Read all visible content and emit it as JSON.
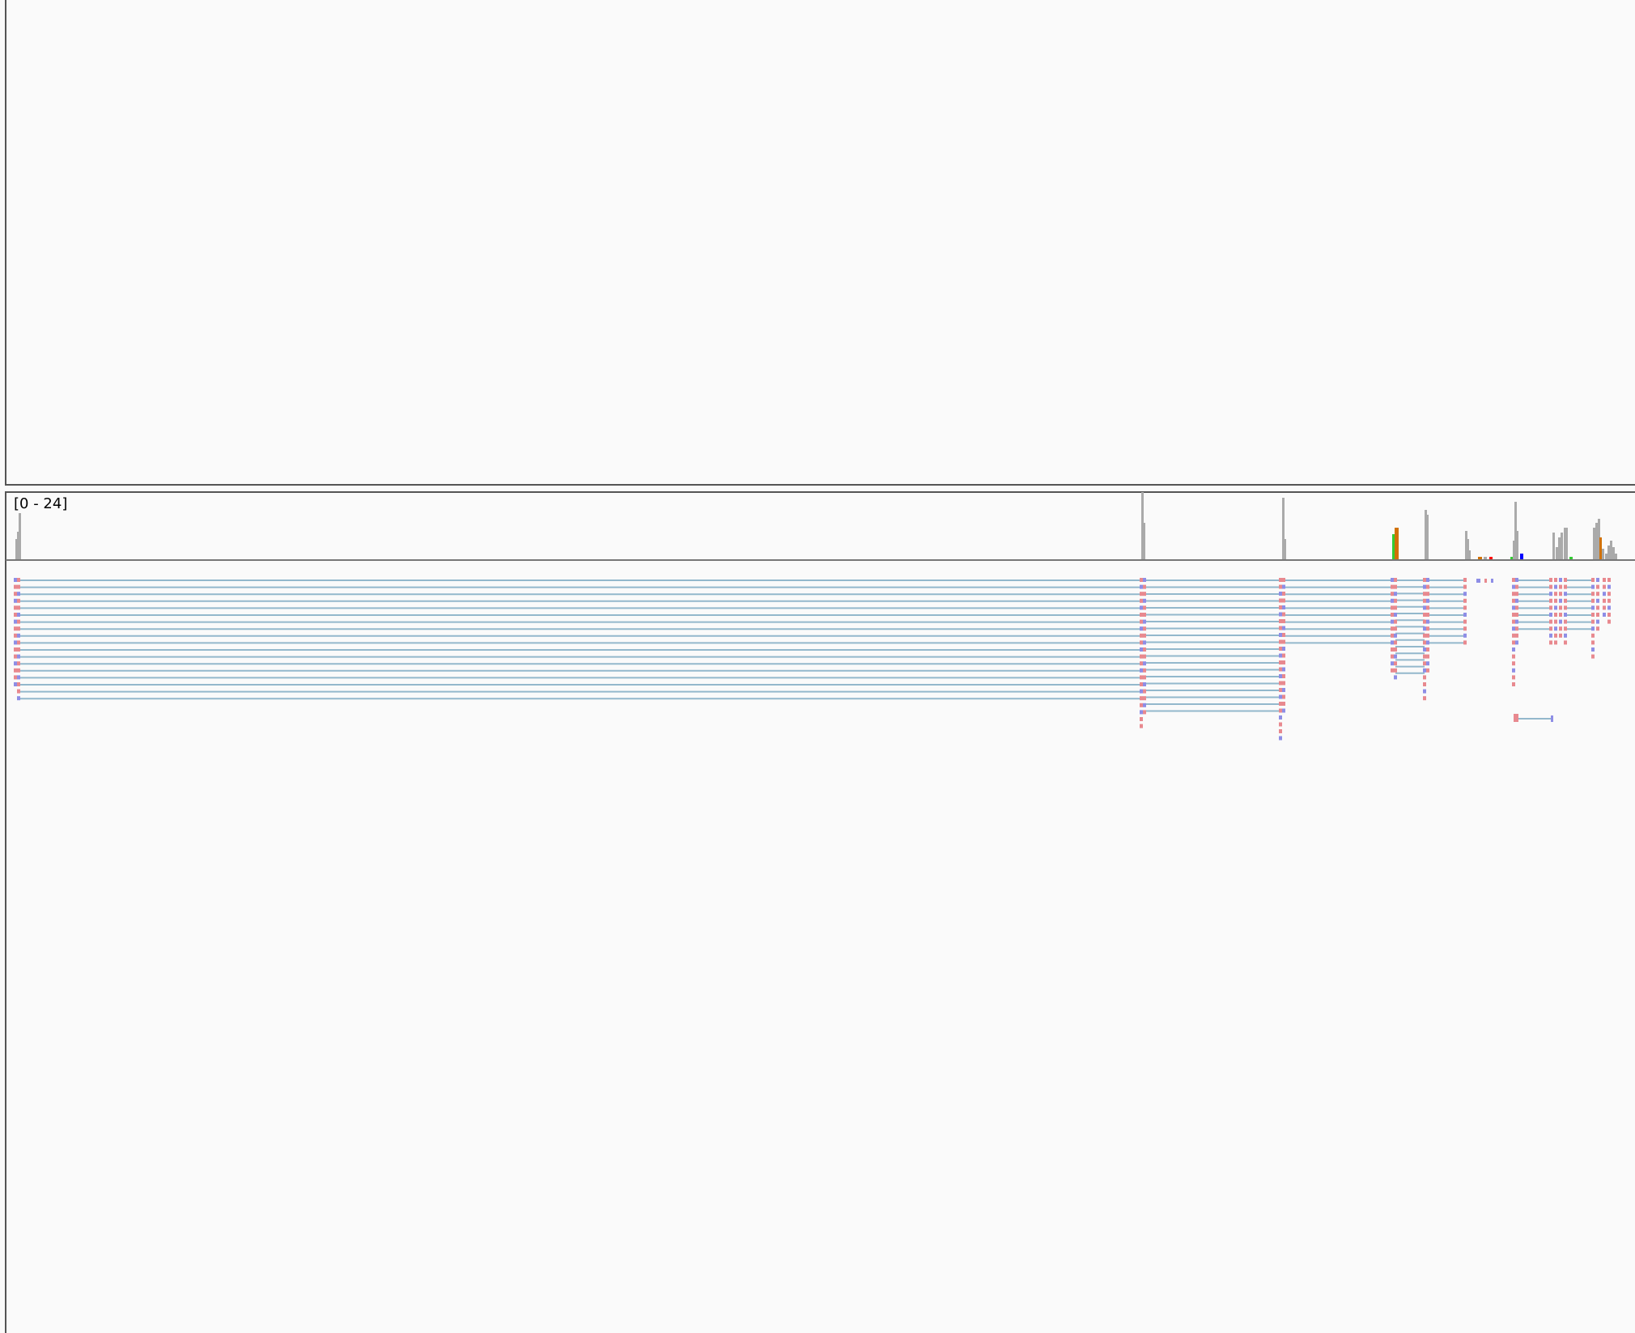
{
  "coverage_track": {
    "range_label": "[0 - 24]",
    "data_range": [
      0,
      24
    ]
  },
  "colors": {
    "coverage_bar": "#aaaaaa",
    "mismatch_A": "#33cc33",
    "mismatch_G": "#d17105",
    "mismatch_T": "#ff0000",
    "mismatch_C": "#0000ff",
    "read_forward": "#e8898f",
    "read_reverse": "#8e8ee6",
    "splice_junction": "#93b8cc",
    "panel_border": "#555555",
    "background": "#fafafa"
  }
}
